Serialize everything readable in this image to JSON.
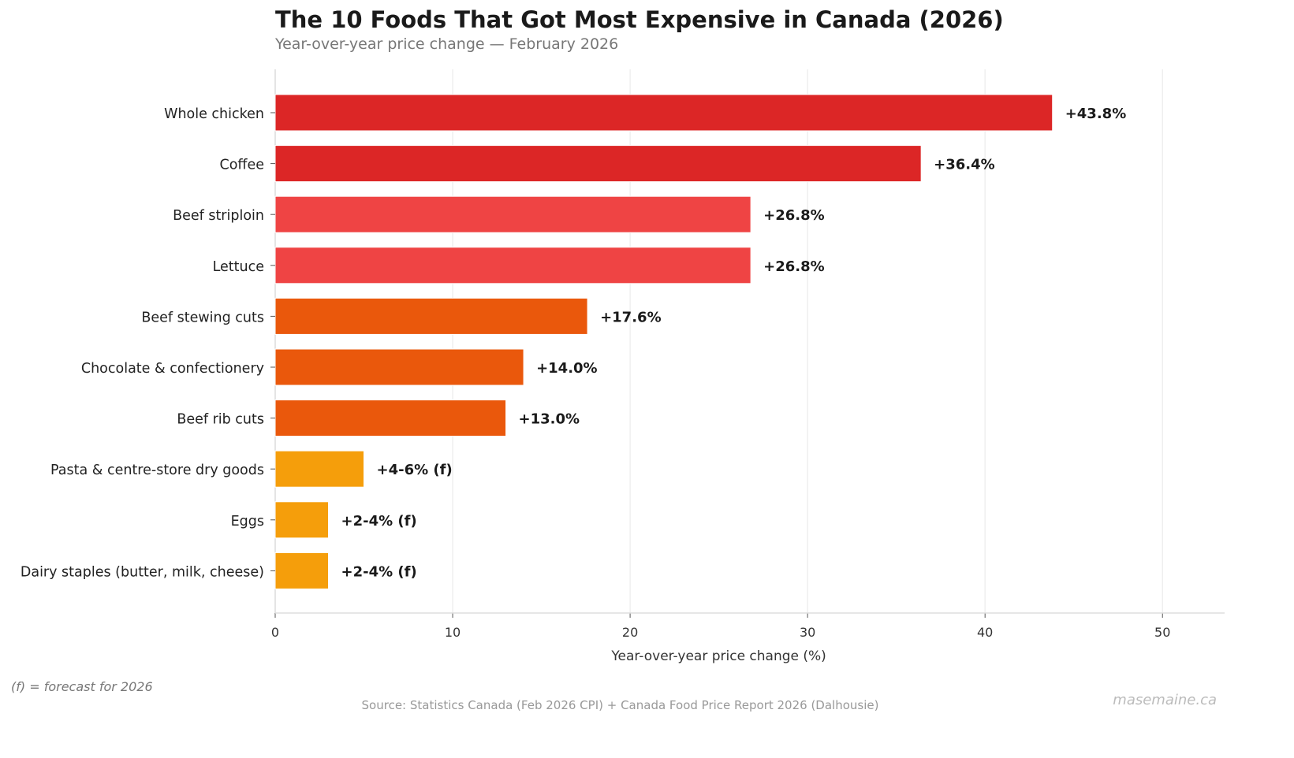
{
  "chart_data": {
    "type": "bar",
    "orientation": "horizontal",
    "title": "The 10 Foods That Got Most Expensive in Canada (2026)",
    "subtitle": "Year-over-year price change — February 2026",
    "xlabel": "Year-over-year price change (%)",
    "ylabel": "",
    "xlim": [
      0,
      53.5
    ],
    "xticks": [
      0,
      10,
      20,
      30,
      40,
      50
    ],
    "grid": "vertical",
    "categories": [
      "Whole chicken",
      "Coffee",
      "Beef striploin",
      "Lettuce",
      "Beef stewing cuts",
      "Chocolate & confectionery",
      "Beef rib cuts",
      "Pasta & centre-store dry goods",
      "Eggs",
      "Dairy staples (butter, milk, cheese)"
    ],
    "values": [
      43.8,
      36.4,
      26.8,
      26.8,
      17.6,
      14.0,
      13.0,
      5,
      3,
      3
    ],
    "labels": [
      "+43.8%",
      "+36.4%",
      "+26.8%",
      "+26.8%",
      "+17.6%",
      "+14.0%",
      "+13.0%",
      "+4-6% (f)",
      "+2-4% (f)",
      "+2-4% (f)"
    ],
    "colors": [
      "#dc2626",
      "#dc2626",
      "#ef4444",
      "#ef4444",
      "#ea580c",
      "#ea580c",
      "#ea580c",
      "#f59e0b",
      "#f59e0b",
      "#f59e0b"
    ]
  },
  "footer": {
    "note": "(f) = forecast for 2026",
    "source": "Source: Statistics Canada (Feb 2026 CPI) + Canada Food Price Report 2026 (Dalhousie)",
    "watermark": "masemaine.ca"
  }
}
